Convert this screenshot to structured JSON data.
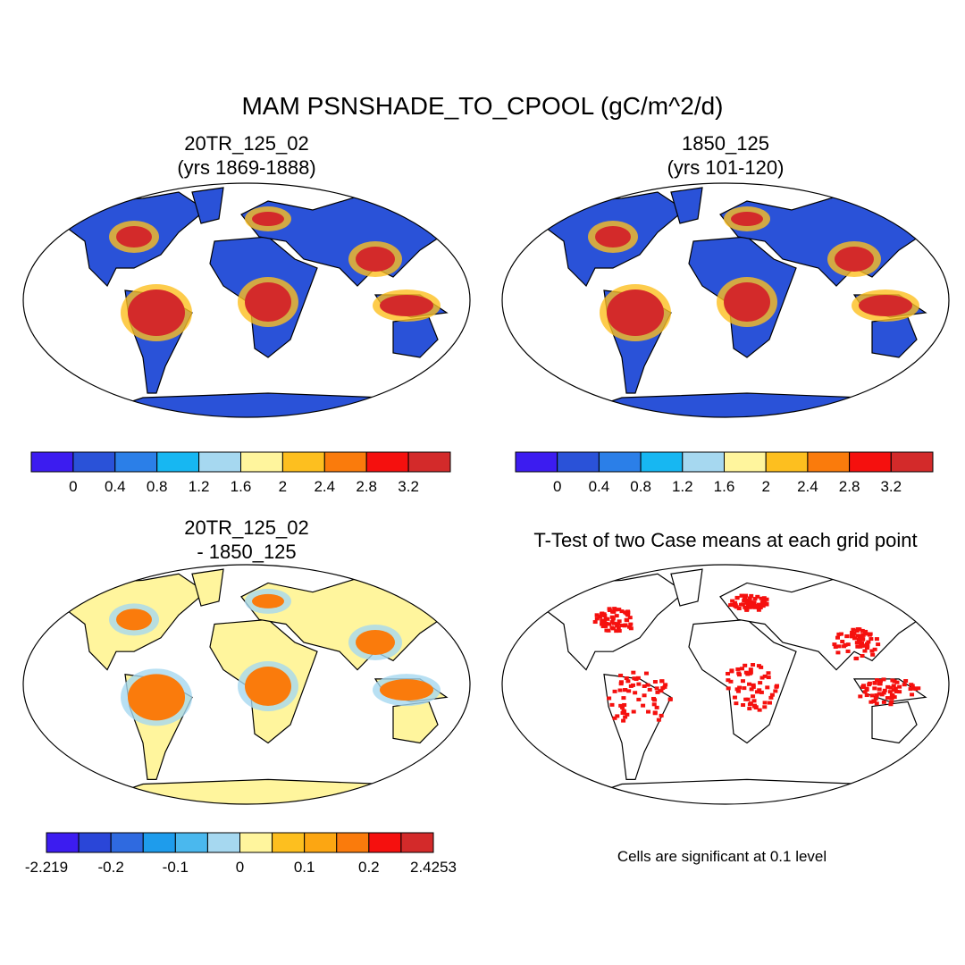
{
  "title": "MAM PSNSHADE_TO_CPOOL (gC/m^2/d)",
  "panels": [
    {
      "title": "20TR_125_02",
      "subtitle": "(yrs 1869-1888)",
      "colorbar": {
        "colors": [
          "#3c1cf0",
          "#2a52d8",
          "#2b7fe8",
          "#17b7f2",
          "#a6d8f0",
          "#fff59d",
          "#fdbf1f",
          "#fa7b0c",
          "#f5100e",
          "#d32a2a"
        ],
        "labels": [
          0,
          0.4,
          0.8,
          1.2,
          1.6,
          2,
          2.4,
          2.8,
          3.2
        ]
      }
    },
    {
      "title": "1850_125",
      "subtitle": "(yrs 101-120)",
      "colorbar": {
        "colors": [
          "#3c1cf0",
          "#2a52d8",
          "#2b7fe8",
          "#17b7f2",
          "#a6d8f0",
          "#fff59d",
          "#fdbf1f",
          "#fa7b0c",
          "#f5100e",
          "#d32a2a"
        ],
        "labels": [
          0,
          0.4,
          0.8,
          1.2,
          1.6,
          2,
          2.4,
          2.8,
          3.2
        ]
      }
    },
    {
      "title": "20TR_125_02",
      "subtitle": "- 1850_125",
      "colorbar": {
        "colors": [
          "#3c1cf0",
          "#2a46d8",
          "#2f6ae0",
          "#1e9cec",
          "#4ab8ee",
          "#a6d8f0",
          "#fff59d",
          "#fdbf1f",
          "#fca612",
          "#fa7b0c",
          "#f5100e",
          "#d32a2a"
        ],
        "labels": [
          -2.219,
          -0.2,
          -0.1,
          0,
          0.1,
          0.2,
          2.4253
        ]
      }
    },
    {
      "title": "T-Test of two Case means at each grid point",
      "note": "Cells are significant at 0.1 level"
    }
  ]
}
